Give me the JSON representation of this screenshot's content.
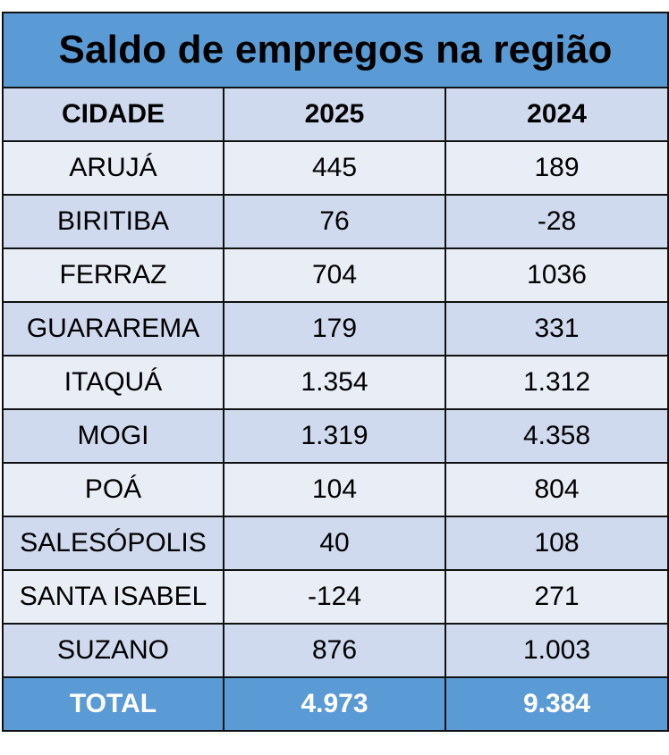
{
  "title": "Saldo de empregos na região",
  "headers": [
    "CIDADE",
    "2025",
    "2024"
  ],
  "rows": [
    {
      "city": "ARUJÁ",
      "y2025": "445",
      "y2024": "189"
    },
    {
      "city": "BIRITIBA",
      "y2025": "76",
      "y2024": "-28"
    },
    {
      "city": "FERRAZ",
      "y2025": "704",
      "y2024": "1036"
    },
    {
      "city": "GUARAREMA",
      "y2025": "179",
      "y2024": "331"
    },
    {
      "city": "ITAQUÁ",
      "y2025": "1.354",
      "y2024": "1.312"
    },
    {
      "city": "MOGI",
      "y2025": "1.319",
      "y2024": "4.358"
    },
    {
      "city": "POÁ",
      "y2025": "104",
      "y2024": "804"
    },
    {
      "city": "SALESÓPOLIS",
      "y2025": "40",
      "y2024": "108"
    },
    {
      "city": "SANTA ISABEL",
      "y2025": "-124",
      "y2024": "271"
    },
    {
      "city": "SUZANO",
      "y2025": "876",
      "y2024": "1.003"
    }
  ],
  "total": {
    "label": "TOTAL",
    "y2025": "4.973",
    "y2024": "9.384"
  },
  "colors": {
    "title_bg": "#5b9bd5",
    "header_bg": "#cfdaee",
    "row_light": "#e9edf6",
    "row_dark": "#cfdaee",
    "total_bg": "#5b9bd5",
    "total_text": "#ffffff"
  }
}
